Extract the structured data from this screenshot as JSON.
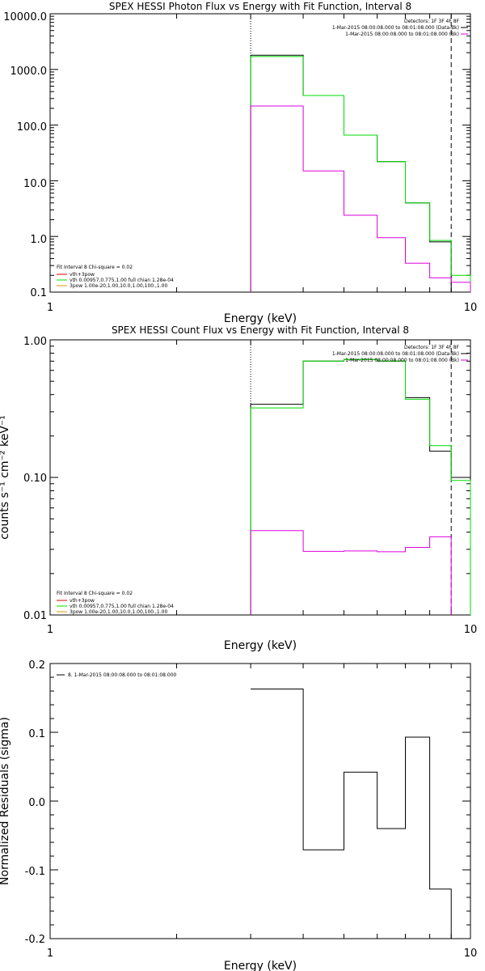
{
  "colors": {
    "black": "#000000",
    "green": "#00dd00",
    "magenta": "#dd00dd",
    "red": "#dd0000",
    "orange": "#dd9900"
  },
  "panels": [
    {
      "title": "SPEX HESSI Photon Flux vs Energy with Fit Function, Interval 8",
      "xlabel": "Energy (keV)",
      "ylabel": "",
      "y_ticks": [
        "10000.0",
        "1000.0",
        "100.0",
        "10.0",
        "1.0",
        "0.1"
      ],
      "x_ticks": [
        "1",
        "10"
      ],
      "legend_right": {
        "header": "Detectors: 1F 3F 4F 8F",
        "lines": [
          "1-Mar-2015 08:00:08.000 to 08:01:08.000 (Data-Bk)",
          "1-Mar-2015 08:00:08.000 to 08:01:08.000 (Bk)"
        ]
      },
      "legend_left": {
        "header": "Fit Interval 8   Chi-square = 0.02",
        "lines": [
          "vth+3pow",
          "vth 0.00957,0.775,1.00  full chian 1.28e-04",
          "3pow 1.00e-20,1.00,10.0,1.00,100.,1.00"
        ]
      }
    },
    {
      "title": "SPEX HESSI Count Flux vs Energy with Fit Function, Interval 8",
      "xlabel": "Energy (keV)",
      "ylabel": "counts s⁻¹ cm⁻² keV⁻¹",
      "y_ticks": [
        "1.00",
        "0.10",
        "0.01"
      ],
      "x_ticks": [
        "1",
        "10"
      ],
      "legend_right": {
        "header": "Detectors: 1F 3F 4F 8F",
        "lines": [
          "1-Mar-2015 08:00:08.000 to 08:01:08.000 (Data-Bk)",
          "1-Mar-2015 08:00:08.000 to 08:01:08.000 (Bk)"
        ]
      },
      "legend_left": {
        "header": "Fit Interval 8   Chi-square = 0.02",
        "lines": [
          "vth+3pow",
          "vth 0.00957,0.775,1.00  full chian 1.28e-04",
          "3pow 1.00e-20,1.00,10.0,1.00,100.,1.00"
        ]
      }
    },
    {
      "title": "",
      "xlabel": "Energy (keV)",
      "ylabel": "Normalized Residuals (sigma)",
      "y_ticks": [
        "0.2",
        "0.1",
        "0.0",
        "-0.1",
        "-0.2"
      ],
      "x_ticks": [
        "1",
        "10"
      ],
      "legend_left": {
        "header": "",
        "lines": [
          "8. 1-Mar-2015 08:00:08.000 to 08:01:08.000"
        ]
      }
    }
  ],
  "chart_data": [
    {
      "type": "line",
      "title": "SPEX HESSI Photon Flux vs Energy with Fit Function, Interval 8",
      "xlabel": "Energy (keV)",
      "ylabel": "",
      "xscale": "log",
      "yscale": "log",
      "xlim": [
        1,
        10
      ],
      "ylim": [
        0.1,
        10000
      ],
      "edges": [
        3,
        4,
        5,
        6,
        7,
        8,
        9,
        10
      ],
      "series": [
        {
          "name": "",
          "color": "#000000",
          "values": [
            1800,
            340,
            66,
            22,
            4.0,
            0.8,
            null
          ]
        },
        {
          "name": "vth+3pow",
          "color": "#00dd00",
          "values": [
            1700,
            340,
            66,
            22,
            4.0,
            0.85,
            0.2
          ]
        },
        {
          "name": "",
          "color": "#dd00dd",
          "values": [
            220,
            15,
            2.4,
            0.95,
            0.33,
            0.18,
            0.15
          ]
        }
      ],
      "vlines": [
        {
          "x": 3,
          "style": "dotted"
        },
        {
          "x": 9,
          "style": "dashed"
        }
      ]
    },
    {
      "type": "line",
      "title": "SPEX HESSI Count Flux vs Energy with Fit Function, Interval 8",
      "xlabel": "Energy (keV)",
      "ylabel": "counts s⁻¹ cm⁻² keV⁻¹",
      "xscale": "log",
      "yscale": "log",
      "xlim": [
        1,
        10
      ],
      "ylim": [
        0.01,
        1.0
      ],
      "edges": [
        3,
        4,
        5,
        6,
        7,
        8,
        9,
        10
      ],
      "series": [
        {
          "name": "",
          "color": "#000000",
          "values": [
            0.34,
            0.7,
            0.72,
            0.7,
            0.38,
            0.155,
            0.1
          ]
        },
        {
          "name": "vth+3pow",
          "color": "#00dd00",
          "values": [
            0.32,
            0.7,
            0.72,
            0.7,
            0.37,
            0.17,
            0.095
          ]
        },
        {
          "name": "",
          "color": "#dd00dd",
          "values": [
            0.041,
            0.029,
            0.0292,
            0.0288,
            0.031,
            0.037,
            null
          ]
        }
      ],
      "vlines": [
        {
          "x": 3,
          "style": "dotted"
        },
        {
          "x": 9,
          "style": "dashed"
        }
      ]
    },
    {
      "type": "line",
      "title": "",
      "xlabel": "Energy (keV)",
      "ylabel": "Normalized Residuals (sigma)",
      "xscale": "log",
      "yscale": "linear",
      "xlim": [
        1,
        10
      ],
      "ylim": [
        -0.2,
        0.2
      ],
      "edges": [
        3,
        4,
        5,
        6,
        7,
        8,
        9
      ],
      "series": [
        {
          "name": "8. 1-Mar-2015 08:00:08.000 to 08:01:08.000",
          "color": "#000000",
          "values": [
            0.163,
            -0.071,
            0.042,
            -0.04,
            0.093,
            -0.128
          ]
        }
      ]
    }
  ]
}
